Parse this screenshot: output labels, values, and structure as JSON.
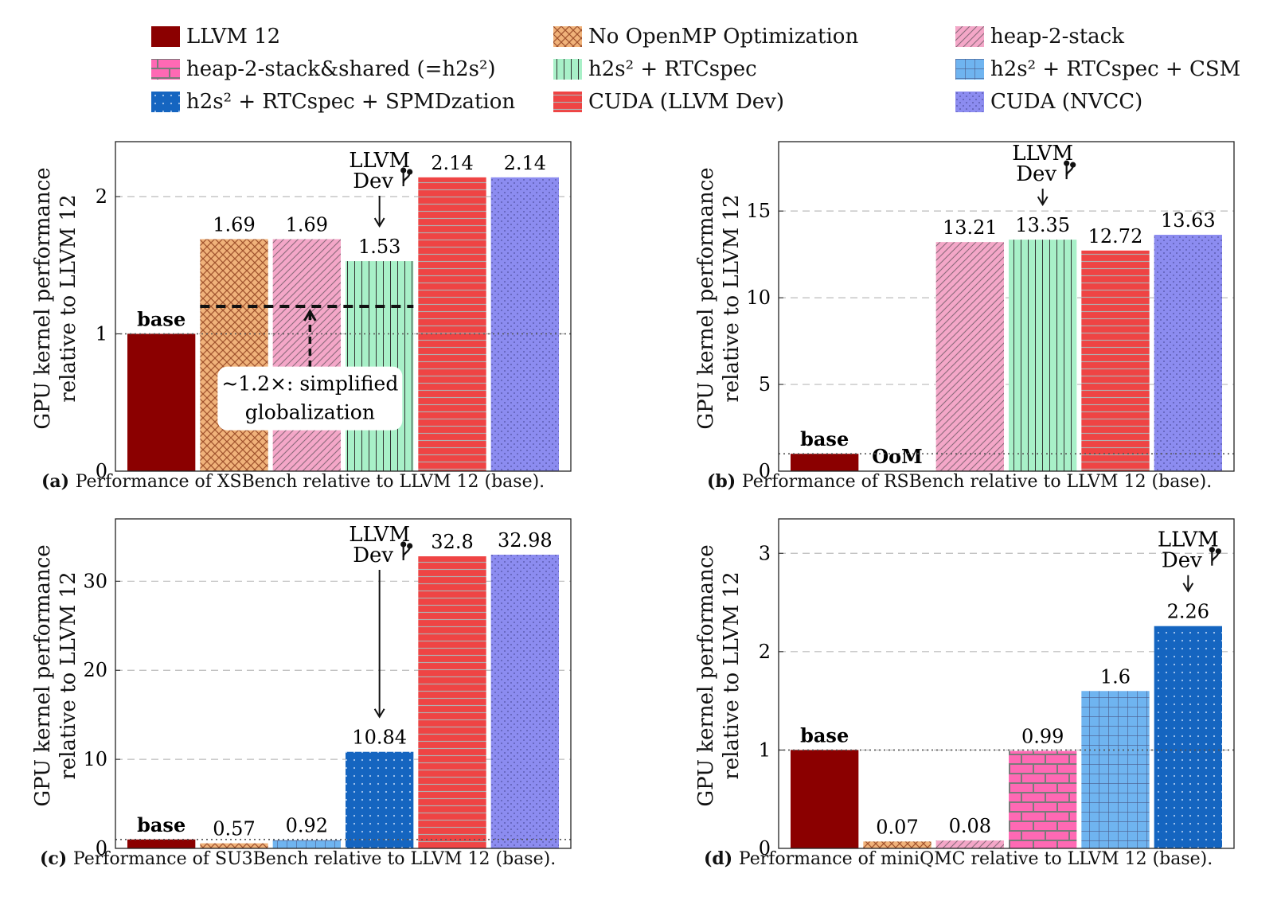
{
  "legend": [
    {
      "label": "LLVM 12",
      "color": "#8b0000",
      "pattern": "solid"
    },
    {
      "label": "No OpenMP Optimization",
      "color": "#f0b27a",
      "pattern": "crosshatch"
    },
    {
      "label": "heap-2-stack",
      "color": "#f4a7c8",
      "pattern": "diag"
    },
    {
      "label": "heap-2-stack&shared (=h2s²)",
      "color": "#ff69b4",
      "pattern": "bricks"
    },
    {
      "label": "h2s² + RTCspec",
      "color": "#a8f0c8",
      "pattern": "vlines"
    },
    {
      "label": "h2s² + RTCspec + CSM",
      "color": "#6fb4f0",
      "pattern": "grid"
    },
    {
      "label": "h2s² + RTCspec + SPMDzation",
      "color": "#1565c0",
      "pattern": "dots"
    },
    {
      "label": "CUDA (LLVM Dev)",
      "color": "#ef4444",
      "pattern": "hlines"
    },
    {
      "label": "CUDA (NVCC)",
      "color": "#8c8cf0",
      "pattern": "finedots"
    }
  ],
  "ylabel_line1": "GPU kernel performance",
  "ylabel_line2": "relative to LLVM 12",
  "annot_llvm": "LLVM",
  "annot_dev": "Dev",
  "base_label": "base",
  "oom_label": "OoM",
  "xs_note_line1": "~1.2×: simplified",
  "xs_note_line2": "globalization",
  "chart_data": [
    {
      "type": "bar",
      "id": "a",
      "caption_letter": "(a)",
      "caption": "Performance of XSBench relative to LLVM 12 (base).",
      "ylim": [
        0,
        2.4
      ],
      "yticks": [
        0,
        1,
        2
      ],
      "series_values": [
        1,
        1.69,
        1.69,
        null,
        1.53,
        null,
        null,
        2.14,
        2.14
      ],
      "bar_series": [
        0,
        1,
        2,
        4,
        7,
        8
      ],
      "labels": [
        "base",
        "1.69",
        "1.69",
        "1.53",
        "2.14",
        "2.14"
      ],
      "llvm_dev_index": 3
    },
    {
      "type": "bar",
      "id": "b",
      "caption_letter": "(b)",
      "caption": "Performance of RSBench relative to LLVM 12 (base).",
      "ylim": [
        0,
        19
      ],
      "yticks": [
        0,
        5,
        10,
        15
      ],
      "bar_series": [
        0,
        1,
        2,
        4,
        7,
        8
      ],
      "values": [
        1,
        null,
        13.21,
        13.35,
        12.72,
        13.63
      ],
      "labels": [
        "base",
        "OoM",
        "13.21",
        "13.35",
        "12.72",
        "13.63"
      ],
      "llvm_dev_index": 3
    },
    {
      "type": "bar",
      "id": "c",
      "caption_letter": "(c)",
      "caption": "Performance of SU3Bench relative to LLVM 12 (base).",
      "ylim": [
        0,
        37
      ],
      "yticks": [
        0,
        10,
        20,
        30
      ],
      "bar_series": [
        0,
        1,
        5,
        6,
        7,
        8
      ],
      "values": [
        1,
        0.57,
        0.92,
        10.84,
        32.8,
        32.98
      ],
      "labels": [
        "base",
        "0.57",
        "0.92",
        "10.84",
        "32.8",
        "32.98"
      ],
      "llvm_dev_index": 3
    },
    {
      "type": "bar",
      "id": "d",
      "caption_letter": "(d)",
      "caption": "Performance of miniQMC relative to LLVM 12 (base).",
      "ylim": [
        0,
        3.35
      ],
      "yticks": [
        0,
        1,
        2,
        3
      ],
      "bar_series": [
        0,
        1,
        2,
        3,
        5,
        6
      ],
      "values": [
        1,
        0.07,
        0.08,
        0.99,
        1.6,
        2.26
      ],
      "labels": [
        "base",
        "0.07",
        "0.08",
        "0.99",
        "1.6",
        "2.26"
      ],
      "llvm_dev_index": 5
    }
  ]
}
